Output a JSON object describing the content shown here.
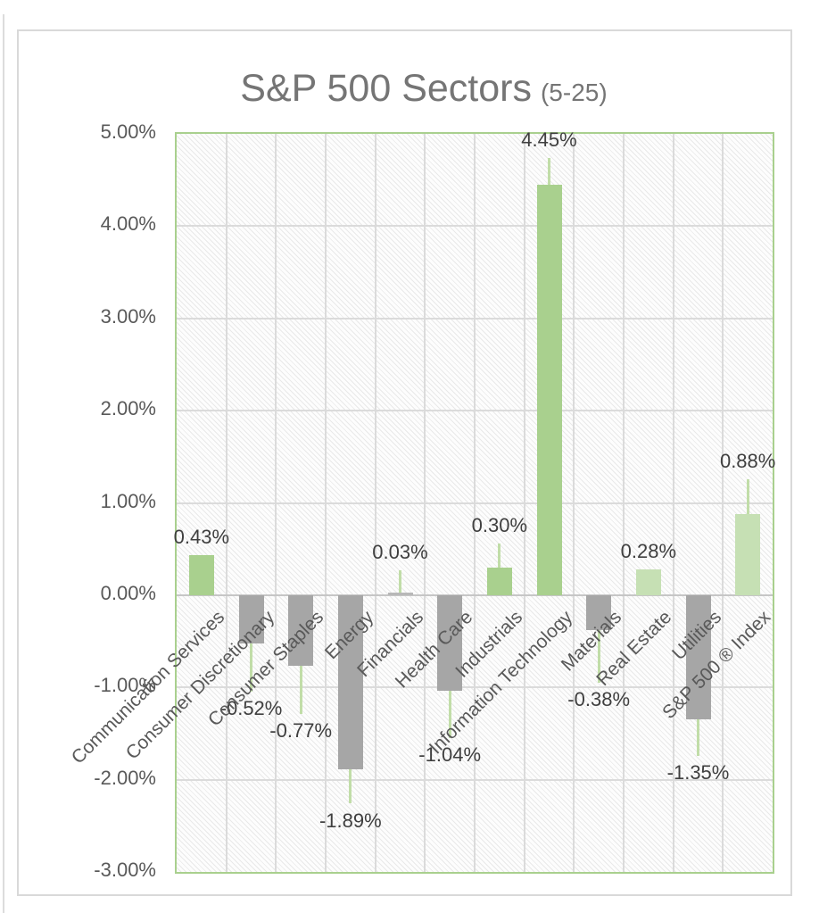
{
  "chart": {
    "title": "S&P 500 Sectors",
    "title_suffix": "(5-25)"
  },
  "chart_data": {
    "type": "bar",
    "title": "S&P 500 Sectors (5-25)",
    "categories": [
      "Communication Services",
      "Consumer Discretionary",
      "Consumer Staples",
      "Energy",
      "Financials",
      "Health Care",
      "Industrials",
      "Information Technology",
      "Materials",
      "Real Estate",
      "Utilities",
      "S&P 500 ® Index"
    ],
    "values": [
      0.43,
      -0.52,
      -0.77,
      -1.89,
      0.03,
      -1.04,
      0.3,
      4.45,
      -0.38,
      0.28,
      -1.35,
      0.88
    ],
    "data_labels": [
      "0.43%",
      "-0.52%",
      "-0.77%",
      "-1.89%",
      "0.03%",
      "-1.04%",
      "0.30%",
      "4.45%",
      "-0.38%",
      "0.28%",
      "-1.35%",
      "0.88%"
    ],
    "whisker_ends": [
      null,
      -1.05,
      -1.29,
      -2.26,
      0.27,
      -1.55,
      0.56,
      4.74,
      -0.95,
      null,
      -1.74,
      1.26
    ],
    "bar_color_keys": [
      "green",
      "gray",
      "gray",
      "gray",
      "lightGray",
      "gray",
      "green",
      "green",
      "gray",
      "lightGreen",
      "gray",
      "lightGreen"
    ],
    "ylim": [
      -3,
      5
    ],
    "ytick_step": 1,
    "ytick_labels": [
      "5.00%",
      "4.00%",
      "3.00%",
      "2.00%",
      "1.00%",
      "0.00%",
      "-1.00%",
      "-2.00%",
      "-3.00%"
    ],
    "grid": true,
    "legend": false,
    "colors": {
      "green": "#A9D08E",
      "lightGreen": "#C6E0B4",
      "gray": "#A6A6A6",
      "lightGray": "#B8B8B8",
      "whisker": "#C1DDA8",
      "plot_border": "#A9D08E",
      "gridline": "#DBDBDB",
      "axis_line": "#C6C6C6",
      "axis_text": "#595959",
      "label_text": "#3F3F3F",
      "title_text": "#757575",
      "frame_border": "#D9D9D9",
      "hatch_line": "#E9E9E9"
    }
  }
}
